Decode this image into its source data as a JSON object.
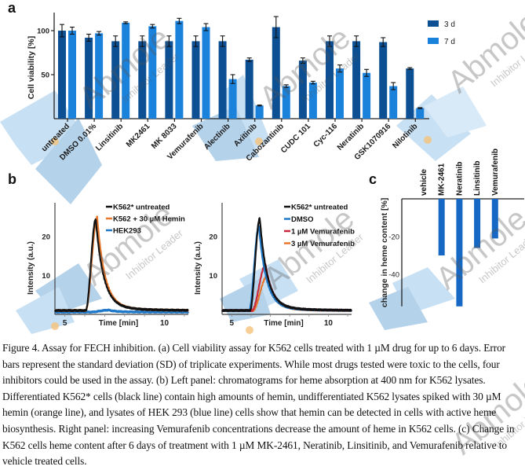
{
  "panels": {
    "a_label": "a",
    "b_label": "b",
    "c_label": "c"
  },
  "colors": {
    "dark_blue": "#0c4f93",
    "light_blue": "#1b82dc",
    "panel_c_bar": "#1668c4",
    "black_line": "#111111",
    "orange_line": "#e8762b",
    "blue_line": "#1f78c8",
    "red_line": "#c8283c"
  },
  "chart_data": [
    {
      "id": "a",
      "type": "bar",
      "title": "",
      "xlabel": "",
      "ylabel": "Cell viability [%]",
      "ylim": [
        0,
        120
      ],
      "yticks": [
        50,
        100
      ],
      "categories": [
        "untreated",
        "DMSO 0.01%",
        "Linsitinib",
        "MK2461",
        "MK 8033",
        "Vemurafenib",
        "Alectinib",
        "Axitinib",
        "Cabozantinib",
        "CUDC 101",
        "Cyc-116",
        "Neratinib",
        "GSK1070916",
        "Nilotinib"
      ],
      "legend_position": "top-right",
      "series": [
        {
          "name": "3 d",
          "values": [
            100,
            92,
            88,
            88,
            88,
            88,
            88,
            67,
            104,
            66,
            88,
            88,
            87,
            57
          ],
          "errors": [
            7,
            4,
            6,
            6,
            6,
            6,
            6,
            2,
            12,
            3,
            6,
            6,
            5,
            1
          ]
        },
        {
          "name": "7 d",
          "values": [
            100,
            97,
            109,
            105,
            111,
            104,
            45,
            15,
            37,
            41,
            57,
            52,
            37,
            12
          ],
          "errors": [
            4,
            2,
            1,
            2,
            3,
            4,
            5,
            0.5,
            1.5,
            1.5,
            4,
            4,
            4,
            0.5
          ]
        }
      ]
    },
    {
      "id": "b-left",
      "type": "line",
      "xlabel": "Time [min]",
      "ylabel": "Intensity (a.u.)",
      "xlim": [
        4.5,
        11.2
      ],
      "ylim": [
        0,
        28
      ],
      "xticks": [
        5,
        10
      ],
      "yticks": [
        10,
        20
      ],
      "legend_position": "top-right",
      "series": [
        {
          "name": "K562* untreated",
          "color_key": "black_line",
          "baseline": 1.0,
          "peak": 24.5,
          "peak_x": 6.55,
          "rise_start": 6.05,
          "tail": 6.0
        },
        {
          "name": "K562 + 30 µM Hemin",
          "color_key": "orange_line",
          "baseline": 1.0,
          "peak": 25.0,
          "peak_x": 6.62,
          "rise_start": 6.05,
          "tail": 5.2
        },
        {
          "name": "HEK293",
          "color_key": "blue_line",
          "baseline": 0.6,
          "peak": 1.1,
          "peak_x": 7.2,
          "rise_start": 6.3,
          "tail": 0.2
        }
      ]
    },
    {
      "id": "b-right",
      "type": "line",
      "xlabel": "Time [min]",
      "ylabel": "Intensity (a.u.)",
      "xlim": [
        4.5,
        11.2
      ],
      "ylim": [
        0,
        28
      ],
      "xticks": [
        5,
        10
      ],
      "yticks": [
        10,
        20
      ],
      "legend_position": "top-right",
      "series": [
        {
          "name": "K562* untreated",
          "color_key": "black_line",
          "baseline": 1.0,
          "peak": 24.7,
          "peak_x": 6.45,
          "rise_start": 5.95,
          "tail": 6.0
        },
        {
          "name": "DMSO",
          "color_key": "blue_line",
          "baseline": 1.0,
          "peak": 22.8,
          "peak_x": 6.4,
          "rise_start": 5.9,
          "tail": 5.0
        },
        {
          "name": "1 µM Vemurafenib",
          "color_key": "red_line",
          "baseline": 1.0,
          "peak": 12.8,
          "peak_x": 6.75,
          "rise_start": 6.05,
          "tail": 4.0
        },
        {
          "name": "3 µM Vemurafenib",
          "color_key": "orange_line",
          "baseline": 1.0,
          "peak": 9.6,
          "peak_x": 6.8,
          "rise_start": 6.1,
          "tail": 3.2
        }
      ]
    },
    {
      "id": "c",
      "type": "bar",
      "xlabel": "",
      "ylabel": "change in heme content [%]",
      "ylim": [
        -57,
        0
      ],
      "yticks": [
        -20,
        -40
      ],
      "categories": [
        "vehicle",
        "MK-2461",
        "Neratinib",
        "Linsitinib",
        "Vemurafenib"
      ],
      "values": [
        0,
        -30,
        -57,
        -26,
        -21
      ]
    }
  ],
  "caption": "Figure 4. Assay for FECH inhibition. (a) Cell viability assay for K562 cells treated with 1 µM drug for up to 6 days. Error bars represent the standard deviation (SD) of triplicate experiments. While most drugs tested were toxic to the cells, four inhibitors could be used in the assay. (b) Left panel: chromatograms for heme absorption at 400 nm for K562 lysates. Differentiated K562* cells (black line) contain high amounts of hemin, undifferentiated K562 lysates spiked with 30 µM hemin (orange line), and lysates of HEK 293 (blue line) cells show that hemin can be detected in cells with active heme biosynthesis. Right panel: increasing Vemurafenib concentrations decrease the amount of heme in K562 cells. (c) Change in K562 cells heme content after 6 days of treatment with 1 µM MK-2461, Neratinib, Linsitinib, and Vemurafenib relative to vehicle treated cells.",
  "watermark": {
    "brand": "Abmole",
    "tagline": "Inhibitor Leader"
  }
}
